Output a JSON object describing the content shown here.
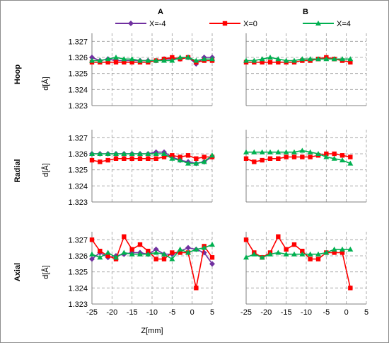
{
  "column_titles": [
    "A",
    "B"
  ],
  "row_titles": [
    "Hoop",
    "Radial",
    "Axial"
  ],
  "y_axis_label": "d[Å]",
  "x_axis_label": "Z[mm]",
  "legend": [
    {
      "name": "X=-4",
      "color": "#7030a0",
      "marker": "diamond"
    },
    {
      "name": "X=0",
      "color": "#ff0000",
      "marker": "square"
    },
    {
      "name": "X=4",
      "color": "#00b050",
      "marker": "triangle"
    }
  ],
  "chart_data": [
    {
      "type": "line",
      "panel": "A",
      "component": "Hoop",
      "xlim": [
        -25,
        5
      ],
      "ylim": [
        1.323,
        1.3275
      ],
      "yticks": [
        1.323,
        1.324,
        1.325,
        1.326,
        1.327
      ],
      "xticks": [
        -25,
        -20,
        -15,
        -10,
        -5,
        0,
        5
      ],
      "series": [
        {
          "name": "X=-4",
          "x": [
            -25,
            -23,
            -21,
            -19,
            -17,
            -15,
            -13,
            -11,
            -9,
            -7,
            -5,
            -3,
            -1,
            1,
            3,
            5
          ],
          "y": [
            1.326,
            1.3258,
            1.3259,
            1.3258,
            1.3258,
            1.3258,
            1.3258,
            1.3258,
            1.3258,
            1.3259,
            1.3259,
            1.3259,
            1.326,
            1.3256,
            1.326,
            1.326
          ]
        },
        {
          "name": "X=0",
          "x": [
            -25,
            -23,
            -21,
            -19,
            -17,
            -15,
            -13,
            -11,
            -9,
            -7,
            -5,
            -3,
            -1,
            1,
            3,
            5
          ],
          "y": [
            1.3257,
            1.3257,
            1.3257,
            1.3257,
            1.3257,
            1.3257,
            1.3257,
            1.3257,
            1.3258,
            1.3259,
            1.326,
            1.3259,
            1.326,
            1.3257,
            1.3258,
            1.3258
          ]
        },
        {
          "name": "X=4",
          "x": [
            -25,
            -23,
            -21,
            -19,
            -17,
            -15,
            -13,
            -11,
            -9,
            -7,
            -5,
            -3,
            -1,
            1,
            3,
            5
          ],
          "y": [
            1.3258,
            1.3258,
            1.3259,
            1.326,
            1.3259,
            1.3259,
            1.3258,
            1.3258,
            1.3258,
            1.3258,
            1.3258,
            1.326,
            1.326,
            1.3258,
            1.3259,
            1.3259
          ]
        }
      ]
    },
    {
      "type": "line",
      "panel": "B",
      "component": "Hoop",
      "xlim": [
        -25,
        5
      ],
      "ylim": [
        1.323,
        1.3275
      ],
      "yticks": [
        1.323,
        1.324,
        1.325,
        1.326,
        1.327
      ],
      "xticks": [
        -25,
        -20,
        -15,
        -10,
        -5,
        0,
        5
      ],
      "series": [
        {
          "name": "X=0",
          "x": [
            -25,
            -23,
            -21,
            -19,
            -17,
            -15,
            -13,
            -11,
            -9,
            -7,
            -5,
            -3,
            -1,
            1
          ],
          "y": [
            1.3257,
            1.3257,
            1.3257,
            1.3257,
            1.3257,
            1.3257,
            1.3257,
            1.3258,
            1.3258,
            1.3259,
            1.326,
            1.3259,
            1.3258,
            1.3257
          ]
        },
        {
          "name": "X=4",
          "x": [
            -25,
            -23,
            -21,
            -19,
            -17,
            -15,
            -13,
            -11,
            -9,
            -7,
            -5,
            -3,
            -1,
            1
          ],
          "y": [
            1.3258,
            1.3258,
            1.3259,
            1.326,
            1.3259,
            1.3258,
            1.3258,
            1.3259,
            1.3259,
            1.3259,
            1.3259,
            1.3259,
            1.3259,
            1.3259
          ]
        }
      ]
    },
    {
      "type": "line",
      "panel": "A",
      "component": "Radial",
      "xlim": [
        -25,
        5
      ],
      "ylim": [
        1.323,
        1.3275
      ],
      "yticks": [
        1.323,
        1.324,
        1.325,
        1.326,
        1.327
      ],
      "xticks": [
        -25,
        -20,
        -15,
        -10,
        -5,
        0,
        5
      ],
      "series": [
        {
          "name": "X=-4",
          "x": [
            -25,
            -23,
            -21,
            -19,
            -17,
            -15,
            -13,
            -11,
            -9,
            -7,
            -5,
            -3,
            -1,
            1,
            3,
            5
          ],
          "y": [
            1.326,
            1.326,
            1.326,
            1.326,
            1.326,
            1.326,
            1.326,
            1.326,
            1.3261,
            1.3261,
            1.3258,
            1.3256,
            1.3255,
            1.3254,
            1.3255,
            1.3258
          ]
        },
        {
          "name": "X=0",
          "x": [
            -25,
            -23,
            -21,
            -19,
            -17,
            -15,
            -13,
            -11,
            -9,
            -7,
            -5,
            -3,
            -1,
            1,
            3,
            5
          ],
          "y": [
            1.3256,
            1.3255,
            1.3256,
            1.3257,
            1.3257,
            1.3257,
            1.3257,
            1.3257,
            1.3257,
            1.3258,
            1.3259,
            1.3258,
            1.3259,
            1.3257,
            1.3258,
            1.3258
          ]
        },
        {
          "name": "X=4",
          "x": [
            -25,
            -23,
            -21,
            -19,
            -17,
            -15,
            -13,
            -11,
            -9,
            -7,
            -5,
            -3,
            -1,
            1,
            3,
            5
          ],
          "y": [
            1.326,
            1.326,
            1.326,
            1.326,
            1.326,
            1.326,
            1.326,
            1.326,
            1.326,
            1.326,
            1.3257,
            1.3256,
            1.3254,
            1.3254,
            1.3255,
            1.3259
          ]
        }
      ]
    },
    {
      "type": "line",
      "panel": "B",
      "component": "Radial",
      "xlim": [
        -25,
        5
      ],
      "ylim": [
        1.323,
        1.3275
      ],
      "yticks": [
        1.323,
        1.324,
        1.325,
        1.326,
        1.327
      ],
      "xticks": [
        -25,
        -20,
        -15,
        -10,
        -5,
        0,
        5
      ],
      "series": [
        {
          "name": "X=0",
          "x": [
            -25,
            -23,
            -21,
            -19,
            -17,
            -15,
            -13,
            -11,
            -9,
            -7,
            -5,
            -3,
            -1,
            1
          ],
          "y": [
            1.3257,
            1.3255,
            1.3256,
            1.3257,
            1.3257,
            1.3258,
            1.3258,
            1.3258,
            1.3258,
            1.3259,
            1.326,
            1.326,
            1.3259,
            1.3258
          ]
        },
        {
          "name": "X=4",
          "x": [
            -25,
            -23,
            -21,
            -19,
            -17,
            -15,
            -13,
            -11,
            -9,
            -7,
            -5,
            -3,
            -1,
            1
          ],
          "y": [
            1.3261,
            1.3261,
            1.3261,
            1.3261,
            1.3261,
            1.3261,
            1.3261,
            1.3262,
            1.3261,
            1.326,
            1.3258,
            1.3257,
            1.3256,
            1.3254
          ]
        }
      ]
    },
    {
      "type": "line",
      "panel": "A",
      "component": "Axial",
      "xlim": [
        -25,
        5
      ],
      "ylim": [
        1.323,
        1.3275
      ],
      "yticks": [
        1.323,
        1.324,
        1.325,
        1.326,
        1.327
      ],
      "xticks": [
        -25,
        -20,
        -15,
        -10,
        -5,
        0,
        5
      ],
      "series": [
        {
          "name": "X=-4",
          "x": [
            -25,
            -23,
            -21,
            -19,
            -17,
            -15,
            -13,
            -11,
            -9,
            -7,
            -5,
            -3,
            -1,
            1,
            3,
            5
          ],
          "y": [
            1.3258,
            1.3262,
            1.3259,
            1.326,
            1.3261,
            1.3262,
            1.3262,
            1.3261,
            1.3264,
            1.3261,
            1.3261,
            1.3263,
            1.3265,
            1.3264,
            1.3262,
            1.3255
          ]
        },
        {
          "name": "X=0",
          "x": [
            -25,
            -23,
            -21,
            -19,
            -17,
            -15,
            -13,
            -11,
            -9,
            -7,
            -5,
            -3,
            -1,
            1,
            3,
            5
          ],
          "y": [
            1.327,
            1.3263,
            1.326,
            1.3258,
            1.3272,
            1.3264,
            1.3267,
            1.3263,
            1.3258,
            1.3258,
            1.3262,
            1.3262,
            1.3262,
            1.324,
            1.3266,
            1.3259
          ]
        },
        {
          "name": "X=4",
          "x": [
            -25,
            -23,
            -21,
            -19,
            -17,
            -15,
            -13,
            -11,
            -9,
            -7,
            -5,
            -3,
            -1,
            1,
            3,
            5
          ],
          "y": [
            1.3261,
            1.3259,
            1.3262,
            1.3259,
            1.3262,
            1.3261,
            1.3261,
            1.3261,
            1.3262,
            1.3261,
            1.3258,
            1.3264,
            1.3262,
            1.3264,
            1.3265,
            1.3267
          ]
        }
      ]
    },
    {
      "type": "line",
      "panel": "B",
      "component": "Axial",
      "xlim": [
        -25,
        5
      ],
      "ylim": [
        1.323,
        1.3275
      ],
      "yticks": [
        1.323,
        1.324,
        1.325,
        1.326,
        1.327
      ],
      "xticks": [
        -25,
        -20,
        -15,
        -10,
        -5,
        0,
        5
      ],
      "series": [
        {
          "name": "X=0",
          "x": [
            -25,
            -23,
            -21,
            -19,
            -17,
            -15,
            -13,
            -11,
            -9,
            -7,
            -5,
            -3,
            -1,
            1
          ],
          "y": [
            1.327,
            1.3262,
            1.3259,
            1.3262,
            1.3272,
            1.3264,
            1.3267,
            1.3263,
            1.3258,
            1.3258,
            1.3262,
            1.3262,
            1.3262,
            1.324
          ]
        },
        {
          "name": "X=4",
          "x": [
            -25,
            -23,
            -21,
            -19,
            -17,
            -15,
            -13,
            -11,
            -9,
            -7,
            -5,
            -3,
            -1,
            1
          ],
          "y": [
            1.3259,
            1.3261,
            1.3259,
            1.3261,
            1.3262,
            1.3261,
            1.3261,
            1.3261,
            1.3261,
            1.3261,
            1.3262,
            1.3264,
            1.3264,
            1.3264
          ]
        }
      ]
    }
  ]
}
